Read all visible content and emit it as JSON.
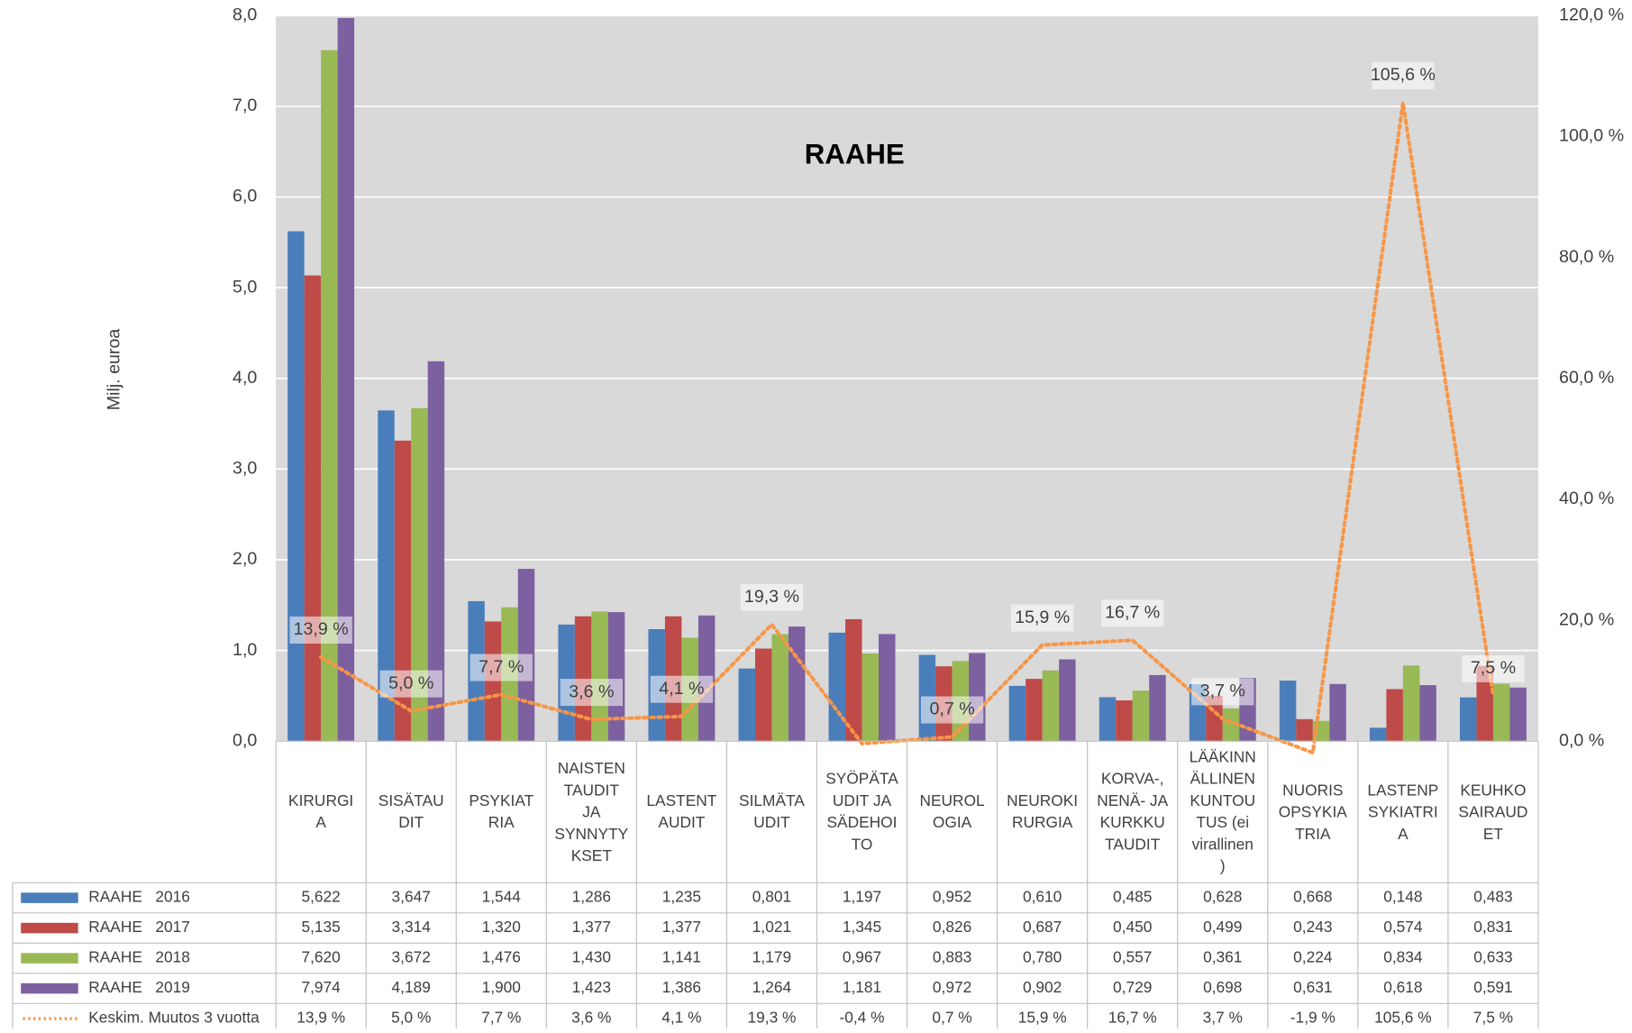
{
  "chart_data": {
    "type": "bar",
    "title": "RAAHE",
    "y_label": "Milj. euroa",
    "categories": [
      "KIRURGI\nA",
      "SISÄTAU\nDIT",
      "PSYKIAT\nRIA",
      "NAISTEN\nTAUDIT\nJA\nSYNNYTY\nKSET",
      "LASTENT\nAUDIT",
      "SILMÄTA\nUDIT",
      "SYÖPÄTA\nUDIT JA\nSÄDEHOI\nTO",
      "NEUROL\nOGIA",
      "NEUROKI\nRURGIA",
      "KORVA-,\nNENÄ- JA\nKURKKU\nTAUDIT",
      "LÄÄKINN\nÄLLINEN\nKUNTOU\nTUS (ei\nvirallinen\n)",
      "NUORIS\nOPSYKIA\nTRIA",
      "LASTENP\nSYKIATRI\nA",
      "KEUHKO\nSAIRAUD\nET"
    ],
    "series": [
      {
        "name": "RAAHE   2016",
        "color": "#4a7ebb",
        "values": [
          5.622,
          3.647,
          1.544,
          1.286,
          1.235,
          0.801,
          1.197,
          0.952,
          0.61,
          0.485,
          0.628,
          0.668,
          0.148,
          0.483
        ],
        "value_labels": [
          "5,622",
          "3,647",
          "1,544",
          "1,286",
          "1,235",
          "0,801",
          "1,197",
          "0,952",
          "0,610",
          "0,485",
          "0,628",
          "0,668",
          "0,148",
          "0,483"
        ]
      },
      {
        "name": "RAAHE   2017",
        "color": "#be4b48",
        "values": [
          5.135,
          3.314,
          1.32,
          1.377,
          1.377,
          1.021,
          1.345,
          0.826,
          0.687,
          0.45,
          0.499,
          0.243,
          0.574,
          0.831
        ],
        "value_labels": [
          "5,135",
          "3,314",
          "1,320",
          "1,377",
          "1,377",
          "1,021",
          "1,345",
          "0,826",
          "0,687",
          "0,450",
          "0,499",
          "0,243",
          "0,574",
          "0,831"
        ]
      },
      {
        "name": "RAAHE   2018",
        "color": "#98b954",
        "values": [
          7.62,
          3.672,
          1.476,
          1.43,
          1.141,
          1.179,
          0.967,
          0.883,
          0.78,
          0.557,
          0.361,
          0.224,
          0.834,
          0.633
        ],
        "value_labels": [
          "7,620",
          "3,672",
          "1,476",
          "1,430",
          "1,141",
          "1,179",
          "0,967",
          "0,883",
          "0,780",
          "0,557",
          "0,361",
          "0,224",
          "0,834",
          "0,633"
        ]
      },
      {
        "name": "RAAHE   2019",
        "color": "#7d60a0",
        "values": [
          7.974,
          4.189,
          1.9,
          1.423,
          1.386,
          1.264,
          1.181,
          0.972,
          0.902,
          0.729,
          0.698,
          0.631,
          0.618,
          0.591
        ],
        "value_labels": [
          "7,974",
          "4,189",
          "1,900",
          "1,423",
          "1,386",
          "1,264",
          "1,181",
          "0,972",
          "0,902",
          "0,729",
          "0,698",
          "0,631",
          "0,618",
          "0,591"
        ]
      },
      {
        "name": "Keskim. Muutos 3 vuotta",
        "type": "line",
        "axis": "y2",
        "color": "#f79646",
        "values": [
          13.9,
          5.0,
          7.7,
          3.6,
          4.1,
          19.3,
          -0.4,
          0.7,
          15.9,
          16.7,
          3.7,
          -1.9,
          105.6,
          7.5
        ],
        "value_labels": [
          "13,9 %",
          "5,0 %",
          "7,7 %",
          "3,6 %",
          "4,1 %",
          "19,3 %",
          "-0,4 %",
          "0,7 %",
          "15,9 %",
          "16,7 %",
          "3,7 %",
          "-1,9 %",
          "105,6 %",
          "7,5 %"
        ]
      }
    ],
    "ylim": [
      0,
      8
    ],
    "yticks": [
      {
        "value": 0,
        "label": "0,0"
      },
      {
        "value": 1,
        "label": "1,0"
      },
      {
        "value": 2,
        "label": "2,0"
      },
      {
        "value": 3,
        "label": "3,0"
      },
      {
        "value": 4,
        "label": "4,0"
      },
      {
        "value": 5,
        "label": "5,0"
      },
      {
        "value": 6,
        "label": "6,0"
      },
      {
        "value": 7,
        "label": "7,0"
      },
      {
        "value": 8,
        "label": "8,0"
      }
    ],
    "y2lim": [
      0,
      120
    ],
    "y2ticks": [
      {
        "value": 0,
        "label": "0,0 %"
      },
      {
        "value": 20,
        "label": "20,0 %"
      },
      {
        "value": 40,
        "label": "40,0 %"
      },
      {
        "value": 60,
        "label": "60,0 %"
      },
      {
        "value": 80,
        "label": "80,0 %"
      },
      {
        "value": 100,
        "label": "100,0 %"
      },
      {
        "value": 120,
        "label": "120,0 %"
      }
    ],
    "grid": true,
    "data_table": true
  }
}
